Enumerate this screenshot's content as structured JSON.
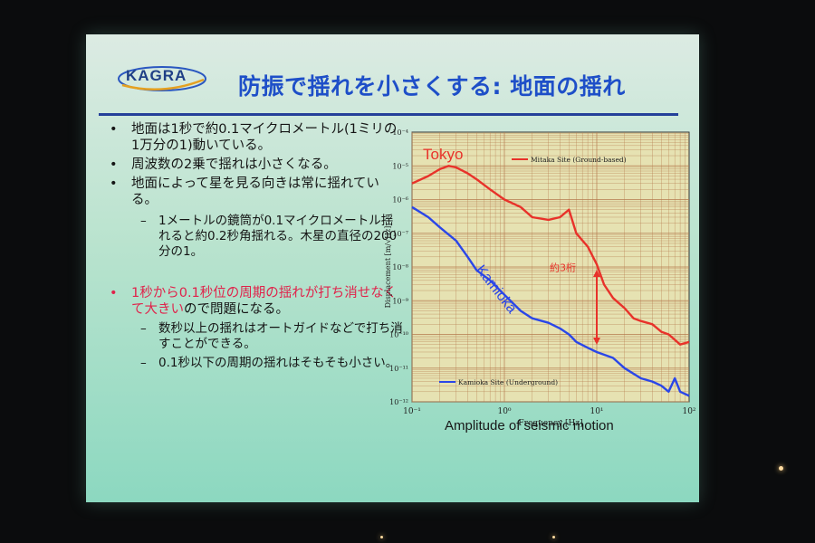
{
  "slide": {
    "logo_text": "KAGRA",
    "title": "防振で揺れを小さくする: 地面の揺れ",
    "bullets": [
      {
        "level": 1,
        "text": "地面は1秒で約0.1マイクロメートル(1ミリの1万分の1)動いている。"
      },
      {
        "level": 1,
        "text": "周波数の2乗で揺れは小さくなる。"
      },
      {
        "level": 1,
        "text": "地面によって星を見る向きは常に揺れている。"
      },
      {
        "level": 2,
        "text": "1メートルの鏡筒が0.1マイクロメートル揺れると約0.2秒角揺れる。木星の直径の200分の1。"
      },
      {
        "level": 1,
        "parts": [
          {
            "text": "1秒から0.1秒位の周期の揺れが打ち消せなくて大きい",
            "color": "#e0224a"
          },
          {
            "text": "ので問題になる。",
            "color": "#151515"
          }
        ]
      },
      {
        "level": 2,
        "text": "数秒以上の揺れはオートガイドなどで打ち消すことができる。"
      },
      {
        "level": 2,
        "text": "0.1秒以下の周期の揺れはそもそも小さい。"
      }
    ],
    "bullet_symbol": "•",
    "sub_bullet_symbol": "–"
  },
  "figure": {
    "caption": "Amplitude of seismic motion",
    "annotations": {
      "tokyo": "Tokyo",
      "kamioka": "Kamioka",
      "ratio": "約3桁"
    },
    "legend": {
      "mitaka": "Mitaka Site (Ground-based)",
      "kamioka": "Kamioka Site (Underground)"
    },
    "colors": {
      "tokyo": "#e8322a",
      "kamioka": "#2a46e8",
      "plot_bg": "#e6e2b2",
      "grid": "#b57a4e"
    }
  },
  "chart_data": {
    "type": "line",
    "xlabel": "Frequency [Hz]",
    "ylabel": "Displacement [m/√Hz]",
    "x_scale": "log",
    "y_scale": "log",
    "xlim": [
      0.1,
      100
    ],
    "ylim": [
      1e-12,
      0.0001
    ],
    "x_tick_labels": [
      "10⁻¹",
      "10⁰",
      "10¹",
      "10²"
    ],
    "y_tick_labels": [
      "10⁻⁴",
      "10⁻⁵",
      "10⁻⁶",
      "10⁻⁷",
      "10⁻⁸",
      "10⁻⁹",
      "10⁻¹⁰",
      "10⁻¹¹",
      "10⁻¹²"
    ],
    "grid": true,
    "series": [
      {
        "name": "Mitaka Site (Ground-based)",
        "x": [
          0.1,
          0.15,
          0.2,
          0.25,
          0.3,
          0.4,
          0.5,
          0.7,
          1,
          1.5,
          2,
          3,
          4,
          5,
          6,
          8,
          10,
          12,
          15,
          20,
          25,
          30,
          40,
          50,
          60,
          80,
          100
        ],
        "y": [
          3e-06,
          5e-06,
          8e-06,
          1e-05,
          9e-06,
          6e-06,
          4e-06,
          2e-06,
          1e-06,
          6e-07,
          3e-07,
          2.5e-07,
          3e-07,
          5e-07,
          1e-07,
          4e-08,
          1.2e-08,
          3e-09,
          1.2e-09,
          6e-10,
          3e-10,
          2.5e-10,
          2e-10,
          1.2e-10,
          1e-10,
          5e-11,
          6e-11
        ]
      },
      {
        "name": "Kamioka Site (Underground)",
        "x": [
          0.1,
          0.15,
          0.2,
          0.3,
          0.4,
          0.5,
          0.7,
          1,
          1.5,
          2,
          3,
          4,
          5,
          6,
          8,
          10,
          15,
          20,
          30,
          40,
          50,
          60,
          70,
          80,
          100
        ],
        "y": [
          6e-07,
          3e-07,
          1.5e-07,
          6e-08,
          2e-08,
          8e-09,
          4e-09,
          1.5e-09,
          5e-10,
          3e-10,
          2.2e-10,
          1.5e-10,
          1e-10,
          6e-11,
          4e-11,
          3e-11,
          2e-11,
          1e-11,
          5e-12,
          4e-12,
          3e-12,
          2e-12,
          5e-12,
          2e-12,
          1.5e-12
        ]
      }
    ]
  }
}
